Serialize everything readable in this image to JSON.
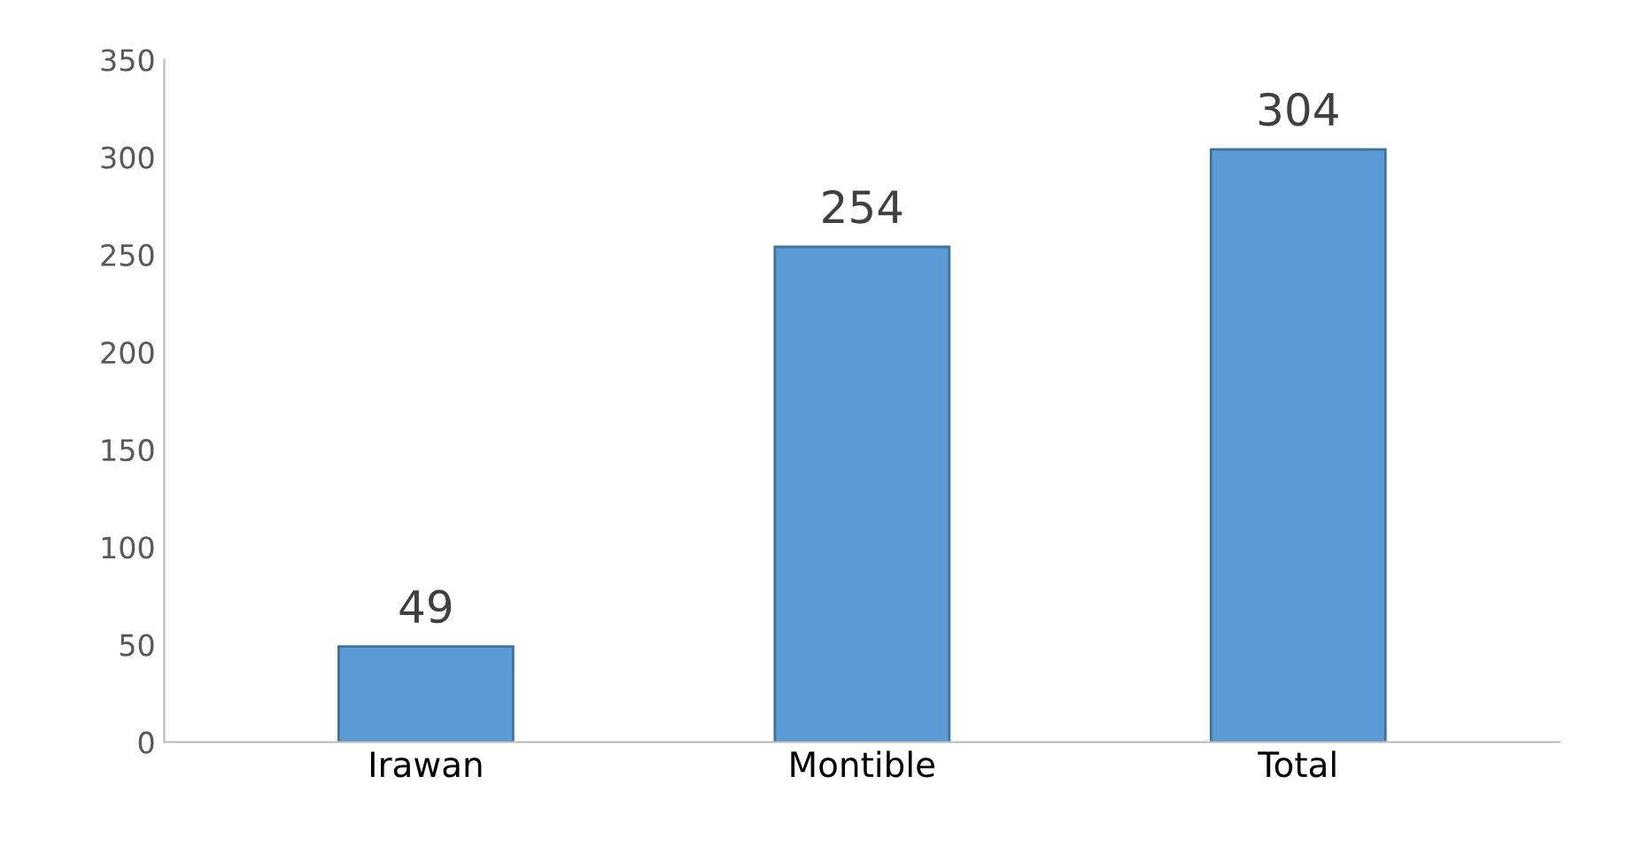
{
  "chart_data": {
    "type": "bar",
    "categories": [
      "Irawan",
      "Montible",
      "Total"
    ],
    "values": [
      49,
      254,
      304
    ],
    "color": "#5b9bd5",
    "ylim": [
      0,
      350
    ],
    "yticks": [
      0,
      50,
      100,
      150,
      200,
      250,
      300,
      350
    ],
    "grid": false,
    "data_labels": true
  }
}
